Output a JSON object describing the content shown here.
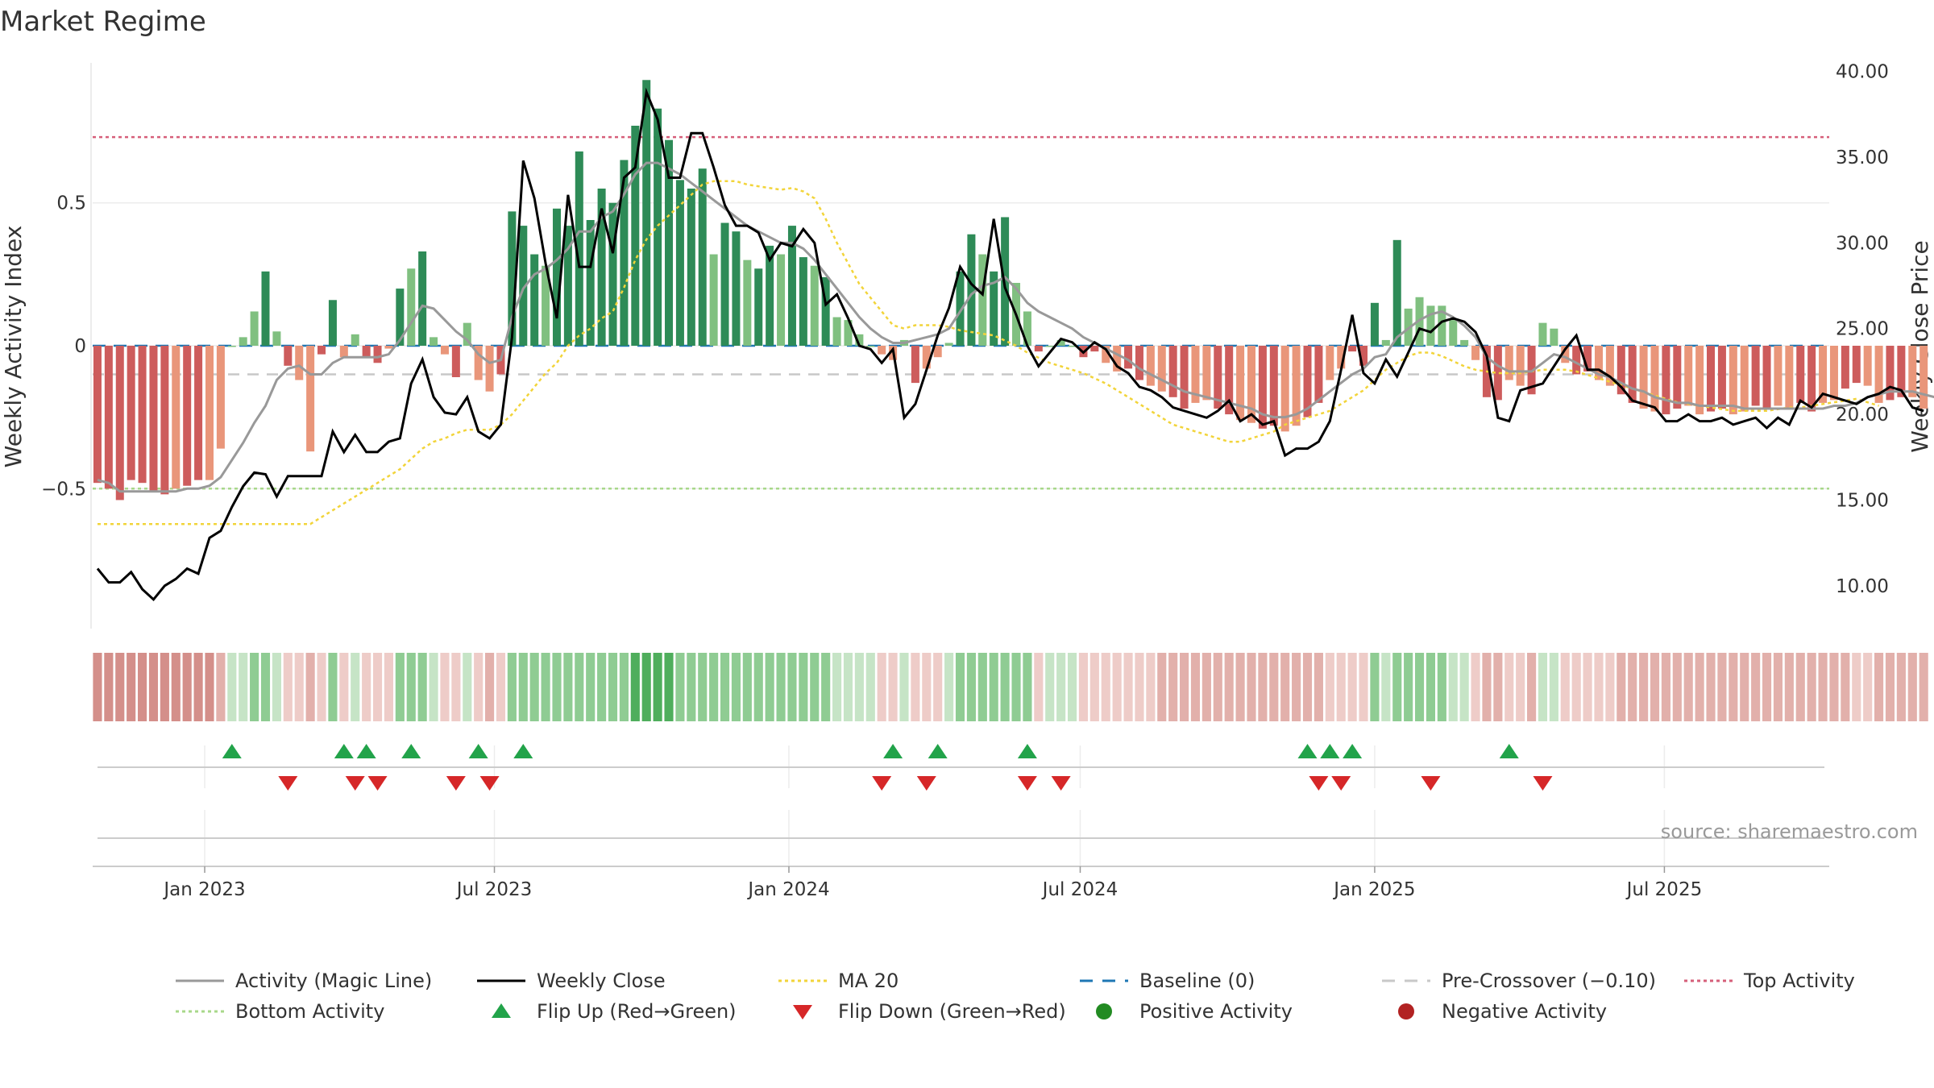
{
  "chart_data": {
    "type": "bar",
    "title": "Market Regime",
    "ylabel_left": "Weekly Activity Index",
    "ylabel_right": "Weekly Close Price",
    "source": "source: sharemaestro.com",
    "y_left_ticks": [
      {
        "value": -0.5,
        "label": "−0.5"
      },
      {
        "value": 0,
        "label": "0"
      },
      {
        "value": 0.5,
        "label": "0.5"
      }
    ],
    "y_left_range": [
      -0.99,
      0.99
    ],
    "y_right_ticks": [
      {
        "value": 10,
        "label": "10.00"
      },
      {
        "value": 15,
        "label": "15.00"
      },
      {
        "value": 20,
        "label": "20.00"
      },
      {
        "value": 25,
        "label": "25.00"
      },
      {
        "value": 30,
        "label": "30.00"
      },
      {
        "value": 35,
        "label": "35.00"
      },
      {
        "value": 40,
        "label": "40.00"
      }
    ],
    "y_right_range": [
      7.5,
      40.5
    ],
    "x_ticks": [
      {
        "date": "2023-01-01",
        "label": "Jan 2023"
      },
      {
        "date": "2023-07-01",
        "label": "Jul 2023"
      },
      {
        "date": "2024-01-01",
        "label": "Jan 2024"
      },
      {
        "date": "2024-07-01",
        "label": "Jul 2024"
      },
      {
        "date": "2025-01-01",
        "label": "Jan 2025"
      },
      {
        "date": "2025-07-01",
        "label": "Jul 2025"
      }
    ],
    "x_range": [
      "2022-10-23",
      "2025-10-12"
    ],
    "levels": {
      "baseline": 0,
      "pre_crossover": -0.1,
      "top_activity": 0.73,
      "bottom_activity": -0.5
    },
    "weeks": {
      "start_date": "2022-10-26",
      "interval_days": 7,
      "activity": [
        -0.48,
        -0.5,
        -0.54,
        -0.47,
        -0.48,
        -0.51,
        -0.52,
        -0.5,
        -0.49,
        -0.47,
        -0.47,
        -0.36,
        0.0,
        0.03,
        0.12,
        0.26,
        0.05,
        -0.07,
        -0.12,
        -0.37,
        -0.03,
        0.16,
        -0.04,
        0.04,
        -0.04,
        -0.06,
        -0.01,
        0.2,
        0.27,
        0.33,
        0.03,
        -0.03,
        -0.11,
        0.08,
        -0.12,
        -0.16,
        -0.1,
        0.47,
        0.42,
        0.32,
        0.28,
        0.48,
        0.42,
        0.68,
        0.44,
        0.55,
        0.5,
        0.65,
        0.77,
        0.93,
        0.83,
        0.72,
        0.58,
        0.55,
        0.62,
        0.32,
        0.43,
        0.4,
        0.3,
        0.27,
        0.35,
        0.32,
        0.42,
        0.31,
        0.28,
        0.24,
        0.1,
        0.09,
        0.04,
        0.0,
        -0.03,
        -0.05,
        0.02,
        -0.13,
        -0.08,
        -0.04,
        0.01,
        0.26,
        0.39,
        0.32,
        0.26,
        0.45,
        0.22,
        0.12,
        -0.02,
        0.0,
        0.02,
        0.0,
        -0.04,
        -0.02,
        -0.06,
        -0.09,
        -0.08,
        -0.12,
        -0.14,
        -0.16,
        -0.18,
        -0.22,
        -0.2,
        -0.19,
        -0.22,
        -0.24,
        -0.26,
        -0.27,
        -0.29,
        -0.28,
        -0.3,
        -0.28,
        -0.25,
        -0.2,
        -0.12,
        -0.08,
        -0.02,
        -0.07,
        0.15,
        0.02,
        0.37,
        0.13,
        0.17,
        0.14,
        0.14,
        0.09,
        0.02,
        -0.05,
        -0.18,
        -0.19,
        -0.12,
        -0.14,
        -0.17,
        0.08,
        0.06,
        -0.06,
        -0.1,
        -0.09,
        -0.12,
        -0.14,
        -0.17,
        -0.2,
        -0.22,
        -0.23,
        -0.24,
        -0.22,
        -0.21,
        -0.24,
        -0.23,
        -0.22,
        -0.24,
        -0.23,
        -0.21,
        -0.22,
        -0.21,
        -0.22,
        -0.2,
        -0.23,
        -0.2,
        -0.19,
        -0.15,
        -0.13,
        -0.14,
        -0.2,
        -0.19,
        -0.18,
        -0.18,
        -0.22
      ],
      "magic_line": [
        -0.47,
        -0.48,
        -0.51,
        -0.51,
        -0.51,
        -0.51,
        -0.51,
        -0.51,
        -0.5,
        -0.5,
        -0.49,
        -0.46,
        -0.4,
        -0.34,
        -0.27,
        -0.21,
        -0.12,
        -0.08,
        -0.07,
        -0.1,
        -0.1,
        -0.06,
        -0.04,
        -0.04,
        -0.04,
        -0.04,
        -0.03,
        0.02,
        0.08,
        0.14,
        0.13,
        0.09,
        0.05,
        0.02,
        -0.03,
        -0.06,
        -0.05,
        0.1,
        0.2,
        0.25,
        0.27,
        0.3,
        0.34,
        0.4,
        0.4,
        0.45,
        0.47,
        0.53,
        0.6,
        0.64,
        0.64,
        0.62,
        0.6,
        0.57,
        0.54,
        0.51,
        0.48,
        0.45,
        0.42,
        0.4,
        0.38,
        0.36,
        0.36,
        0.34,
        0.3,
        0.25,
        0.2,
        0.15,
        0.1,
        0.06,
        0.03,
        0.01,
        0.01,
        0.02,
        0.03,
        0.04,
        0.06,
        0.12,
        0.18,
        0.21,
        0.22,
        0.24,
        0.2,
        0.15,
        0.12,
        0.1,
        0.08,
        0.06,
        0.03,
        0.01,
        -0.01,
        -0.03,
        -0.05,
        -0.08,
        -0.1,
        -0.12,
        -0.14,
        -0.16,
        -0.17,
        -0.18,
        -0.19,
        -0.2,
        -0.21,
        -0.22,
        -0.24,
        -0.25,
        -0.25,
        -0.24,
        -0.22,
        -0.19,
        -0.16,
        -0.13,
        -0.1,
        -0.08,
        -0.04,
        -0.03,
        0.03,
        0.06,
        0.09,
        0.11,
        0.12,
        0.1,
        0.07,
        0.03,
        -0.04,
        -0.07,
        -0.09,
        -0.09,
        -0.09,
        -0.06,
        -0.03,
        -0.04,
        -0.06,
        -0.08,
        -0.1,
        -0.11,
        -0.13,
        -0.15,
        -0.16,
        -0.18,
        -0.19,
        -0.2,
        -0.2,
        -0.21,
        -0.21,
        -0.21,
        -0.21,
        -0.22,
        -0.22,
        -0.22,
        -0.22,
        -0.22,
        -0.22,
        -0.22,
        -0.22,
        -0.21,
        -0.21,
        -0.2,
        -0.18,
        -0.17,
        -0.16,
        -0.16,
        -0.16,
        -0.17,
        -0.18
      ],
      "close": [
        11.0,
        10.2,
        10.2,
        10.8,
        9.8,
        9.2,
        10.0,
        10.4,
        11.0,
        10.7,
        12.8,
        13.2,
        14.6,
        15.8,
        16.6,
        16.5,
        15.2,
        16.4,
        16.4,
        16.4,
        16.4,
        19.0,
        17.8,
        18.8,
        17.8,
        17.8,
        18.4,
        18.6,
        21.8,
        23.2,
        21.0,
        20.1,
        20.0,
        21.0,
        19.0,
        18.6,
        19.4,
        24.5,
        34.8,
        32.6,
        28.8,
        25.6,
        32.8,
        28.6,
        28.6,
        32.0,
        29.4,
        33.8,
        34.4,
        38.8,
        37.2,
        33.8,
        33.8,
        36.4,
        36.4,
        34.4,
        32.2,
        31.0,
        31.0,
        30.6,
        29.0,
        30.0,
        29.8,
        30.8,
        30.0,
        26.4,
        27.0,
        25.6,
        24.0,
        23.8,
        23.0,
        23.8,
        19.8,
        20.6,
        22.6,
        24.6,
        26.2,
        28.6,
        27.6,
        27.0,
        31.4,
        27.4,
        25.8,
        24.0,
        22.8,
        23.6,
        24.4,
        24.2,
        23.6,
        24.2,
        23.8,
        22.8,
        22.4,
        21.6,
        21.4,
        21.0,
        20.4,
        20.2,
        20.0,
        19.8,
        20.2,
        20.8,
        19.6,
        20.0,
        19.4,
        19.6,
        17.6,
        18.0,
        18.0,
        18.4,
        19.6,
        22.6,
        25.8,
        22.4,
        21.8,
        23.2,
        22.2,
        23.6,
        25.0,
        24.8,
        25.4,
        25.6,
        25.4,
        24.8,
        23.4,
        19.8,
        19.6,
        21.4,
        21.6,
        21.8,
        22.8,
        23.8,
        24.6,
        22.6,
        22.6,
        22.2,
        21.6,
        20.8,
        20.6,
        20.4,
        19.6,
        19.6,
        20.0,
        19.6,
        19.6,
        19.8,
        19.4,
        19.6,
        19.8,
        19.2,
        19.8,
        19.4,
        20.8,
        20.4,
        21.2,
        21.0,
        20.8,
        20.6,
        21.0,
        21.2,
        21.6,
        21.4,
        20.4,
        20.2
      ],
      "ma20": [
        13.6,
        13.6,
        13.6,
        13.6,
        13.6,
        13.6,
        13.6,
        13.6,
        13.6,
        13.6,
        13.6,
        13.6,
        13.6,
        13.6,
        13.6,
        13.6,
        13.6,
        13.6,
        13.6,
        13.6,
        14.0,
        14.4,
        14.8,
        15.2,
        15.6,
        16.0,
        16.4,
        16.8,
        17.4,
        18.0,
        18.4,
        18.6,
        18.9,
        19.1,
        19.1,
        19.1,
        19.4,
        20.0,
        20.8,
        21.6,
        22.4,
        23.0,
        24.0,
        24.6,
        25.0,
        25.6,
        26.0,
        27.4,
        29.0,
        30.2,
        31.0,
        31.6,
        32.2,
        32.8,
        33.4,
        33.6,
        33.6,
        33.6,
        33.4,
        33.3,
        33.2,
        33.1,
        33.2,
        33.0,
        32.6,
        31.4,
        30.0,
        28.8,
        27.6,
        26.8,
        26.0,
        25.2,
        25.0,
        25.2,
        25.2,
        25.2,
        25.1,
        24.9,
        24.8,
        24.7,
        24.6,
        24.3,
        24.0,
        23.6,
        23.3,
        23.0,
        22.8,
        22.6,
        22.4,
        22.1,
        21.8,
        21.4,
        21.0,
        20.6,
        20.2,
        19.8,
        19.4,
        19.2,
        19.0,
        18.8,
        18.6,
        18.4,
        18.4,
        18.6,
        18.8,
        19.0,
        19.4,
        19.6,
        19.8,
        20.0,
        20.2,
        20.6,
        21.0,
        21.4,
        22.0,
        22.6,
        23.0,
        23.4,
        23.6,
        23.6,
        23.4,
        23.1,
        22.8,
        22.6,
        22.5,
        22.4,
        22.4,
        22.4,
        22.5,
        22.6,
        22.6,
        22.6,
        22.5,
        22.3,
        22.1,
        21.9,
        21.7,
        21.5,
        21.3,
        21.1,
        20.9,
        20.7,
        20.6,
        20.5,
        20.4,
        20.3,
        20.2,
        20.2,
        20.2,
        20.2,
        20.3,
        20.4,
        20.4,
        20.5,
        20.6,
        20.7,
        20.8,
        20.9,
        20.7,
        20.5
      ]
    },
    "regime_strip": {
      "color_scale": {
        "strong_negative": "#d48f8a",
        "negative": "#e2b0ab",
        "weak_negative": "#eeccc8",
        "weak_positive": "#c6e4c6",
        "positive": "#8fcc93",
        "strong_positive": "#4fae5c"
      }
    },
    "flip_up_weeks": [
      12,
      22,
      24,
      28,
      34,
      38,
      71,
      75,
      83,
      108,
      110,
      112,
      126
    ],
    "flip_down_weeks": [
      17,
      23,
      25,
      32,
      35,
      70,
      74,
      83,
      86,
      109,
      111,
      119,
      129
    ],
    "colors": {
      "strong_green": "#2e8b57",
      "light_green": "#80c080",
      "strong_red": "#cd5c5c",
      "light_red": "#e9967a",
      "magic_line": "#999999",
      "close_line": "#000000",
      "ma20": "#f2d43a",
      "baseline": "#1f77b4",
      "pre_crossover": "#c8c8c8",
      "top_activity": "#d65f7a",
      "bottom_activity": "#a8d88a",
      "flip_up": "#22a34a",
      "flip_down": "#d62728",
      "positive_activity": "#228b22",
      "negative_activity": "#b22222"
    },
    "legend": [
      {
        "label": "Activity (Magic Line)",
        "marker": "line",
        "color": "#999999",
        "dash": ""
      },
      {
        "label": "Weekly Close",
        "marker": "line",
        "color": "#000000",
        "dash": ""
      },
      {
        "label": "MA 20",
        "marker": "line",
        "color": "#f2d43a",
        "dash": "dotted"
      },
      {
        "label": "Baseline (0)",
        "marker": "line",
        "color": "#1f77b4",
        "dash": "dashed"
      },
      {
        "label": "Pre-Crossover (−0.10)",
        "marker": "line",
        "color": "#c8c8c8",
        "dash": "dashed"
      },
      {
        "label": "Top Activity",
        "marker": "line",
        "color": "#d65f7a",
        "dash": "dotted"
      },
      {
        "label": "Bottom Activity",
        "marker": "line",
        "color": "#a8d88a",
        "dash": "dotted"
      },
      {
        "label": "Flip Up (Red→Green)",
        "marker": "triangle-up",
        "color": "#22a34a",
        "dash": ""
      },
      {
        "label": "Flip Down (Green→Red)",
        "marker": "triangle-down",
        "color": "#d62728",
        "dash": ""
      },
      {
        "label": "Positive Activity",
        "marker": "circle",
        "color": "#228b22",
        "dash": ""
      },
      {
        "label": "Negative Activity",
        "marker": "circle",
        "color": "#b22222",
        "dash": ""
      }
    ]
  }
}
